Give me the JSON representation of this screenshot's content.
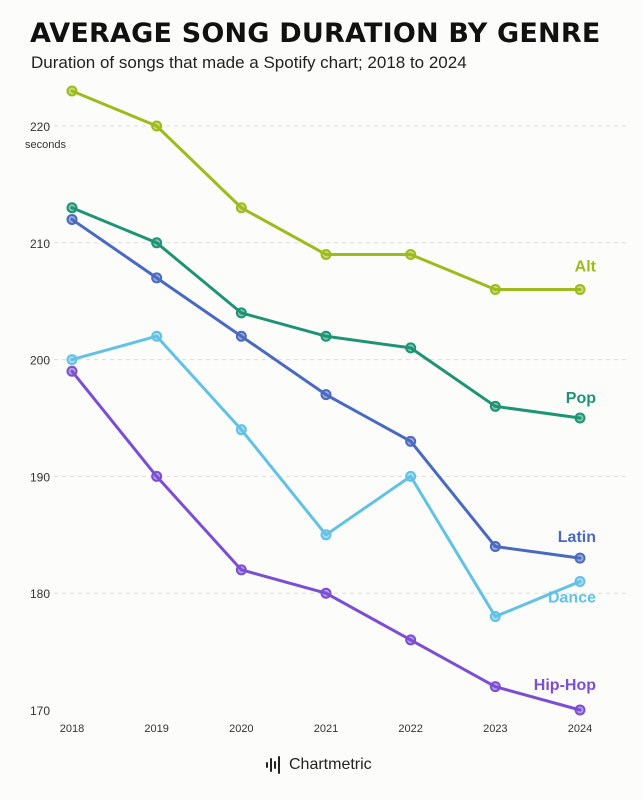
{
  "header": {
    "title": "AVERAGE SONG DURATION BY GENRE",
    "subtitle": "Duration of songs that made a Spotify chart; 2018 to 2024"
  },
  "brand": {
    "name": "Chartmetric",
    "icon": "waveform-logo-icon"
  },
  "chart_data": {
    "type": "line",
    "title": "AVERAGE SONG DURATION BY GENRE",
    "subtitle": "Duration of songs that made a Spotify chart; 2018 to 2024",
    "x": [
      2018,
      2019,
      2020,
      2021,
      2022,
      2023,
      2024
    ],
    "ylim": [
      170,
      225
    ],
    "yticks": [
      170,
      180,
      190,
      200,
      210,
      220
    ],
    "yunit": "seconds",
    "grid": "horizontal-dashed",
    "legend": "direct labels at line ends",
    "series": [
      {
        "name": "Alt",
        "color": "#9dbb1e",
        "values": [
          223,
          220,
          213,
          209,
          209,
          206,
          206
        ]
      },
      {
        "name": "Pop",
        "color": "#1e9474",
        "values": [
          213,
          210,
          204,
          202,
          201,
          196,
          195
        ]
      },
      {
        "name": "Latin",
        "color": "#4a6ac0",
        "values": [
          212,
          207,
          202,
          197,
          193,
          184,
          183
        ]
      },
      {
        "name": "Dance",
        "color": "#63c1e6",
        "values": [
          200,
          202,
          194,
          185,
          190,
          178,
          181
        ]
      },
      {
        "name": "Hip-Hop",
        "color": "#7b4fd2",
        "values": [
          199,
          190,
          182,
          180,
          176,
          172,
          170
        ]
      }
    ]
  }
}
